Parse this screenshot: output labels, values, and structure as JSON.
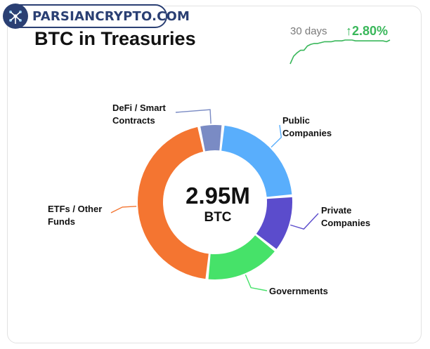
{
  "watermark": {
    "text": "PARSIANCRYPTO.COM"
  },
  "header": {
    "title": "BTC in Treasuries",
    "period": "30 days",
    "change": "↑2.80%",
    "change_color": "#39b75a"
  },
  "chart_data": [
    {
      "type": "pie",
      "variant": "donut",
      "center_value": "2.95M",
      "center_unit": "BTC",
      "categories": [
        "Public\nCompanies",
        "Private\nCompanies",
        "Governments",
        "ETFs / Other\nFunds",
        "DeFi / Smart\nContracts"
      ],
      "values": [
        22,
        12,
        16,
        45,
        5
      ],
      "colors": [
        "#59aefc",
        "#5b4ccc",
        "#46e269",
        "#f47531",
        "#7a8bc4"
      ]
    },
    {
      "type": "line",
      "name": "sparkline",
      "x": [
        1,
        2,
        3,
        4,
        5,
        6,
        7,
        8,
        9,
        10,
        11,
        12,
        13,
        14,
        15,
        16,
        17,
        18,
        19,
        20,
        21,
        22,
        23,
        24,
        25,
        26,
        27,
        28,
        29,
        30
      ],
      "values": [
        100,
        100.9,
        101.3,
        101.6,
        101.6,
        102.1,
        102.3,
        102.4,
        102.4,
        102.5,
        102.6,
        102.6,
        102.6,
        102.7,
        102.7,
        102.7,
        102.8,
        102.8,
        102.8,
        102.7,
        102.7,
        102.7,
        102.7,
        102.7,
        102.7,
        102.7,
        102.7,
        102.7,
        102.6,
        102.8
      ],
      "color": "#39b75a"
    }
  ]
}
